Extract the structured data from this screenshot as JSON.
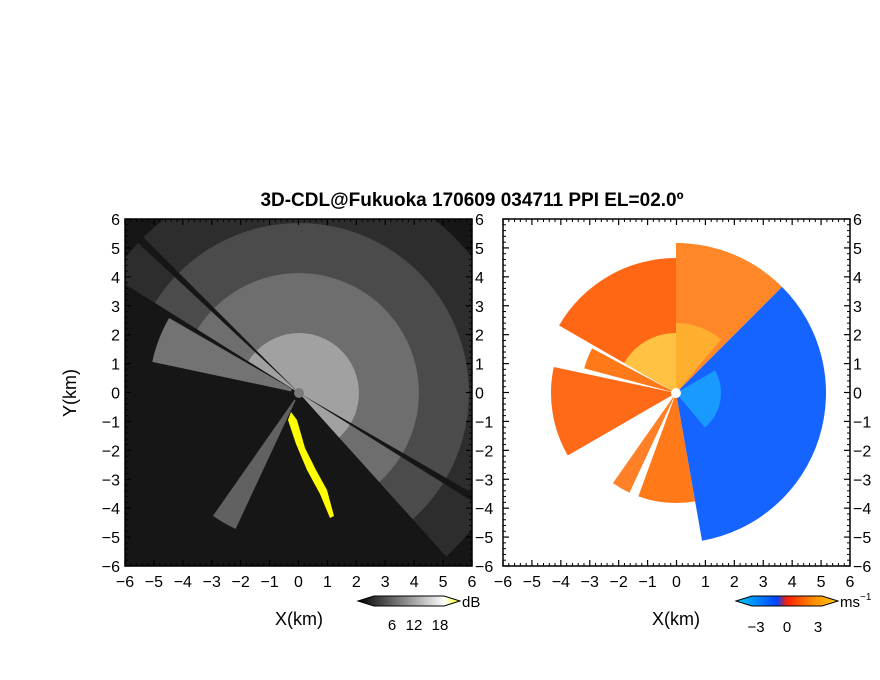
{
  "chart_data": [
    {
      "type": "heatmap",
      "panel": "reflectivity",
      "title": "3D-CDL@Fukuoka 170609 034711 PPI EL=02.0º",
      "xlabel": "X(km)",
      "ylabel": "Y(km)",
      "xlim": [
        -6,
        6
      ],
      "ylim": [
        -6,
        6
      ],
      "xticks": [
        "−6",
        "−5",
        "−4",
        "−3",
        "−2",
        "−1",
        "0",
        "1",
        "2",
        "3",
        "4",
        "5",
        "6"
      ],
      "yticks": [
        "6",
        "5",
        "4",
        "3",
        "2",
        "1",
        "0",
        "−1",
        "−2",
        "−3",
        "−4",
        "−5",
        "−6"
      ],
      "colorbar": {
        "unit": "dB",
        "ticks": [
          "6",
          "12",
          "18"
        ],
        "range": [
          0,
          24
        ],
        "colors": [
          "#000000",
          "#ffffff",
          "#ffff00"
        ]
      },
      "colors": {
        "background": "#161616",
        "yellow_echo": "#ffff00",
        "center_marker": "#7a7a7a"
      }
    },
    {
      "type": "heatmap",
      "panel": "doppler_velocity",
      "xlabel": "X(km)",
      "xlim": [
        -6,
        6
      ],
      "ylim": [
        -6,
        6
      ],
      "xticks": [
        "−6",
        "−5",
        "−4",
        "−3",
        "−2",
        "−1",
        "0",
        "1",
        "2",
        "3",
        "4",
        "5",
        "6"
      ],
      "yticks": [
        "6",
        "5",
        "4",
        "3",
        "2",
        "1",
        "0",
        "−1",
        "−2",
        "−3",
        "−4",
        "−5",
        "−6"
      ],
      "colorbar": {
        "unit": "ms",
        "unit_exp": "−1",
        "ticks": [
          "−3",
          "0",
          "3"
        ],
        "range": [
          -4,
          4
        ],
        "colors": [
          "#00ccff",
          "#0044ff",
          "#ff6600",
          "#ffcc00"
        ]
      },
      "colors": {
        "background": "#ffffff",
        "approaching": "#0a5cff",
        "receding": "#ff5a00",
        "near_field": "#ffd24a"
      }
    }
  ]
}
